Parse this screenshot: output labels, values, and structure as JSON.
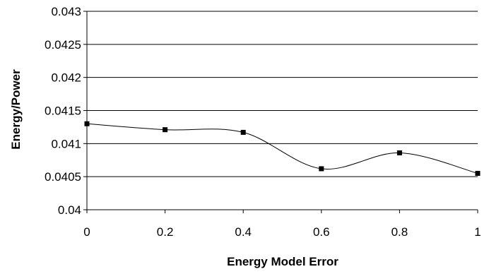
{
  "chart_data": {
    "type": "line",
    "title": "",
    "xlabel": "Energy Model Error",
    "ylabel": "Energy/Power",
    "xlim": [
      0,
      1
    ],
    "ylim": [
      0.04,
      0.043
    ],
    "grid": true,
    "smooth": true,
    "x_ticks": [
      "0",
      "0.2",
      "0.4",
      "0.6",
      "0.8",
      "1"
    ],
    "y_ticks": [
      "0.04",
      "0.0405",
      "0.041",
      "0.0415",
      "0.042",
      "0.0425",
      "0.043"
    ],
    "series": [
      {
        "x": [
          0,
          0.2,
          0.4,
          0.6,
          0.8,
          1
        ],
        "y": [
          0.0413,
          0.04121,
          0.04117,
          0.04062,
          0.04086,
          0.04055
        ],
        "marker": "square",
        "color": "#000000"
      }
    ]
  }
}
